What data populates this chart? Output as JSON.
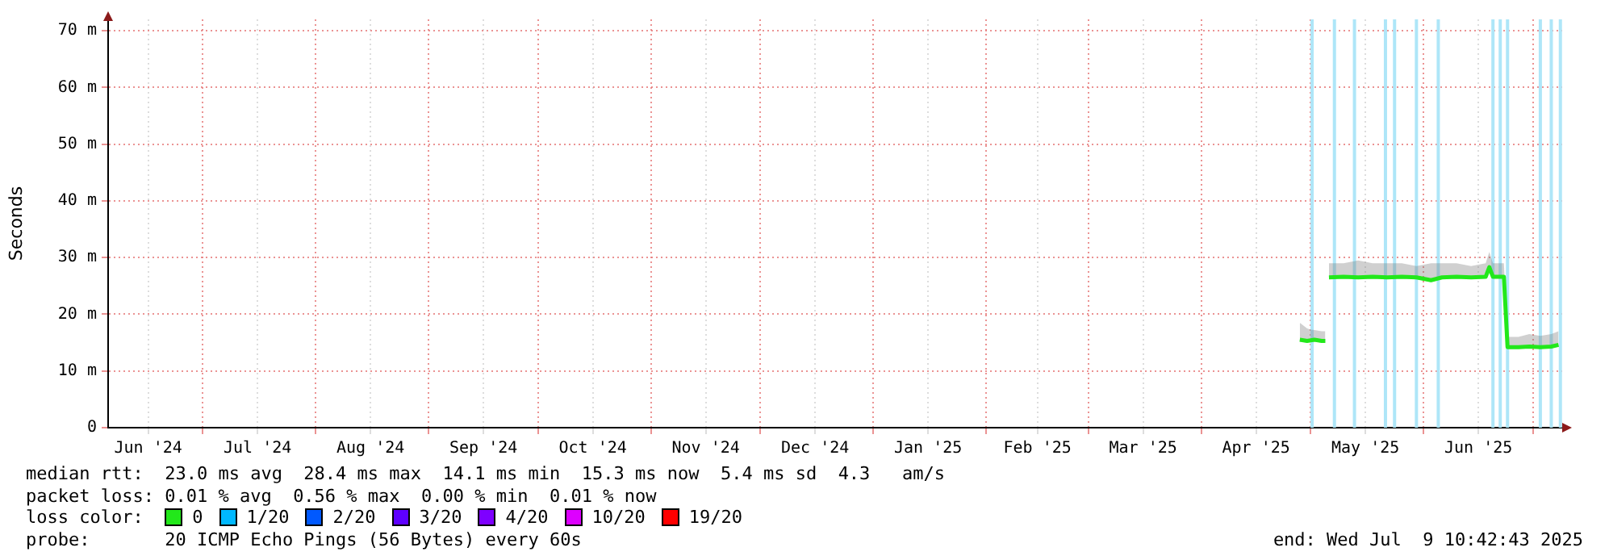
{
  "chart_data": {
    "type": "line",
    "ylabel": "Seconds",
    "x": [
      "2025-04-28",
      "2025-04-29",
      "2025-04-30",
      "2025-05-01",
      "2025-05-02",
      "2025-05-03",
      "2025-05-04",
      "2025-05-05",
      "2025-05-05T12:00",
      "2025-05-06",
      "2025-05-10",
      "2025-05-14",
      "2025-05-18",
      "2025-05-22",
      "2025-05-26",
      "2025-05-30",
      "2025-06-03",
      "2025-06-06",
      "2025-06-10",
      "2025-06-14",
      "2025-06-18",
      "2025-06-19",
      "2025-06-20",
      "2025-06-23",
      "2025-06-24",
      "2025-06-27",
      "2025-06-30",
      "2025-07-03",
      "2025-07-06",
      "2025-07-08"
    ],
    "series": [
      {
        "name": "0",
        "color": "#22e81a",
        "values": [
          15.5,
          15.4,
          15.3,
          15.4,
          15.5,
          15.4,
          15.3,
          15.3,
          null,
          26.5,
          26.6,
          26.5,
          26.6,
          26.5,
          26.6,
          26.5,
          26,
          26.5,
          26.6,
          26.5,
          26.6,
          28.3,
          26.6,
          26.6,
          14.2,
          14.2,
          14.3,
          14.2,
          14.3,
          14.6
        ],
        "lower": [
          15.2,
          15.1,
          15,
          15.1,
          15.2,
          15.1,
          15,
          15,
          null,
          26.2,
          26.3,
          26.2,
          26.3,
          26.2,
          26.3,
          26.2,
          25.7,
          26.2,
          26.3,
          26.2,
          26.3,
          28,
          26.3,
          26.3,
          13.9,
          13.9,
          14,
          13.9,
          14,
          14.3
        ],
        "upper": [
          18.5,
          18,
          17.5,
          17.3,
          17.2,
          17.1,
          17,
          17,
          null,
          29,
          29,
          29.5,
          29,
          29,
          29,
          28.5,
          29,
          29,
          29,
          28.5,
          29,
          31,
          29,
          29,
          16,
          16,
          16.5,
          16.2,
          16.5,
          17
        ]
      },
      {
        "name": "1/20",
        "color": "#00b8ff",
        "values": [
          null,
          null,
          null,
          null,
          null,
          null,
          null,
          null,
          null,
          null,
          null,
          null,
          null,
          null,
          null,
          null,
          null,
          null,
          null,
          null,
          null,
          null,
          null,
          null,
          null,
          null,
          null,
          null,
          null,
          null
        ]
      },
      {
        "name": "2/20",
        "color": "#0059ff",
        "values": [
          null,
          null,
          null,
          null,
          null,
          null,
          null,
          null,
          null,
          null,
          null,
          null,
          null,
          null,
          null,
          null,
          null,
          null,
          null,
          null,
          null,
          null,
          null,
          null,
          null,
          null,
          null,
          null,
          null,
          null
        ]
      },
      {
        "name": "3/20",
        "color": "#5e00ff",
        "values": [
          null,
          null,
          null,
          null,
          null,
          null,
          null,
          null,
          null,
          null,
          null,
          null,
          null,
          null,
          null,
          null,
          null,
          null,
          null,
          null,
          null,
          null,
          null,
          null,
          null,
          null,
          null,
          null,
          null,
          null
        ]
      },
      {
        "name": "4/20",
        "color": "#7e00ff",
        "values": [
          null,
          null,
          null,
          null,
          null,
          null,
          null,
          null,
          null,
          null,
          null,
          null,
          null,
          null,
          null,
          null,
          null,
          null,
          null,
          null,
          null,
          null,
          null,
          null,
          null,
          null,
          null,
          null,
          null,
          null
        ]
      },
      {
        "name": "10/20",
        "color": "#dd00ff",
        "values": [
          null,
          null,
          null,
          null,
          null,
          null,
          null,
          null,
          null,
          null,
          null,
          null,
          null,
          null,
          null,
          null,
          null,
          null,
          null,
          null,
          null,
          null,
          null,
          null,
          null,
          null,
          null,
          null,
          null,
          null
        ]
      },
      {
        "name": "19/20",
        "color": "#ff0000",
        "values": [
          null,
          null,
          null,
          null,
          null,
          null,
          null,
          null,
          null,
          null,
          null,
          null,
          null,
          null,
          null,
          null,
          null,
          null,
          null,
          null,
          null,
          null,
          null,
          null,
          null,
          null,
          null,
          null,
          null,
          null
        ]
      }
    ],
    "legend": "bottom",
    "legend_title": "loss color:",
    "xlim": [
      "2024-06-05",
      "2025-07-09"
    ],
    "xticks": [
      {
        "value": "2024-06-16",
        "label": "Jun '24"
      },
      {
        "value": "2024-07-01",
        "label": null
      },
      {
        "value": "2024-07-16",
        "label": "Jul '24"
      },
      {
        "value": "2024-08-01",
        "label": null
      },
      {
        "value": "2024-08-16",
        "label": "Aug '24"
      },
      {
        "value": "2024-09-01",
        "label": null
      },
      {
        "value": "2024-09-16",
        "label": "Sep '24"
      },
      {
        "value": "2024-10-01",
        "label": null
      },
      {
        "value": "2024-10-16",
        "label": "Oct '24"
      },
      {
        "value": "2024-11-01",
        "label": null
      },
      {
        "value": "2024-11-16",
        "label": "Nov '24"
      },
      {
        "value": "2024-12-01",
        "label": null
      },
      {
        "value": "2024-12-16",
        "label": "Dec '24"
      },
      {
        "value": "2025-01-01",
        "label": null
      },
      {
        "value": "2025-01-16",
        "label": "Jan '25"
      },
      {
        "value": "2025-02-01",
        "label": null
      },
      {
        "value": "2025-02-15",
        "label": "Feb '25"
      },
      {
        "value": "2025-03-01",
        "label": null
      },
      {
        "value": "2025-03-16",
        "label": "Mar '25"
      },
      {
        "value": "2025-04-01",
        "label": null
      },
      {
        "value": "2025-04-16",
        "label": "Apr '25"
      },
      {
        "value": "2025-05-01",
        "label": null
      },
      {
        "value": "2025-05-16",
        "label": "May '25"
      },
      {
        "value": "2025-06-01",
        "label": null
      },
      {
        "value": "2025-06-16",
        "label": "Jun '25"
      },
      {
        "value": "2025-07-01",
        "label": null
      }
    ],
    "ylim": [
      0,
      72
    ],
    "yticks": [
      {
        "value": 0,
        "label": "0"
      },
      {
        "value": 10,
        "label": "10 m"
      },
      {
        "value": 20,
        "label": "20 m"
      },
      {
        "value": 30,
        "label": "30 m"
      },
      {
        "value": 40,
        "label": "40 m"
      },
      {
        "value": 50,
        "label": "50 m"
      },
      {
        "value": 60,
        "label": "60 m"
      },
      {
        "value": 70,
        "label": "70 m"
      }
    ],
    "grid": true,
    "ref_lines": [
      {
        "axis": "x",
        "value": "2025-05-01T09:00",
        "color": "#aee6f8"
      },
      {
        "axis": "x",
        "value": "2025-05-07T12:00",
        "color": "#aee6f8"
      },
      {
        "axis": "x",
        "value": "2025-05-13",
        "color": "#aee6f8"
      },
      {
        "axis": "x",
        "value": "2025-05-21T12:00",
        "color": "#aee6f8"
      },
      {
        "axis": "x",
        "value": "2025-05-24",
        "color": "#aee6f8"
      },
      {
        "axis": "x",
        "value": "2025-05-30",
        "color": "#aee6f8"
      },
      {
        "axis": "x",
        "value": "2025-06-05",
        "color": "#aee6f8"
      },
      {
        "axis": "x",
        "value": "2025-06-20",
        "color": "#aee6f8"
      },
      {
        "axis": "x",
        "value": "2025-06-22",
        "color": "#aee6f8"
      },
      {
        "axis": "x",
        "value": "2025-06-24",
        "color": "#aee6f8"
      },
      {
        "axis": "x",
        "value": "2025-07-03",
        "color": "#aee6f8"
      },
      {
        "axis": "x",
        "value": "2025-07-06",
        "color": "#aee6f8"
      },
      {
        "axis": "x",
        "value": "2025-07-08T12:00",
        "color": "#aee6f8"
      }
    ],
    "annotations": [
      "median rtt:  23.0 ms avg  28.4 ms max  14.1 ms min  15.3 ms now  5.4 ms sd  4.3   am/s",
      "packet loss: 0.01 % avg  0.56 % max  0.00 % min  0.01 % now",
      "probe:       20 ICMP Echo Pings (56 Bytes) every 60s",
      "end: Wed Jul  9 10:42:43 2025"
    ]
  }
}
